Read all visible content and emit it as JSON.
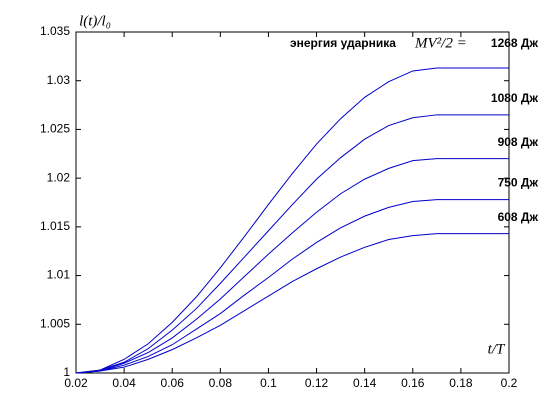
{
  "chart_data": {
    "type": "line",
    "ylabel": "l(t)/l₀",
    "xlabel": "t/T",
    "annotation": "энергия ударника",
    "formula": "MV²/2 =",
    "x": [
      0.02,
      0.03,
      0.04,
      0.05,
      0.06,
      0.07,
      0.08,
      0.09,
      0.1,
      0.11,
      0.12,
      0.13,
      0.14,
      0.15,
      0.16,
      0.17,
      0.18,
      0.19,
      0.2
    ],
    "series": [
      {
        "name": "1268  Дж",
        "color": "#0000cc",
        "values": [
          1,
          1.0003,
          1.0014,
          1.003,
          1.0052,
          1.0078,
          1.0108,
          1.014,
          1.0173,
          1.0205,
          1.0235,
          1.0261,
          1.0283,
          1.0299,
          1.031,
          1.0313,
          1.0313,
          1.0313,
          1.0313
        ]
      },
      {
        "name": "1080 Дж",
        "color": "#0000cc",
        "values": [
          1,
          1.0003,
          1.0011,
          1.0025,
          1.0044,
          1.0066,
          1.0092,
          1.0119,
          1.0146,
          1.0173,
          1.0199,
          1.0221,
          1.024,
          1.0254,
          1.0262,
          1.0265,
          1.0265,
          1.0265,
          1.0265
        ]
      },
      {
        "name": "908  Дж",
        "color": "#0000cc",
        "values": [
          1,
          1.0002,
          1.001,
          1.0021,
          1.0036,
          1.0055,
          1.0076,
          1.0099,
          1.0122,
          1.0144,
          1.0165,
          1.0184,
          1.0199,
          1.021,
          1.0218,
          1.022,
          1.022,
          1.022,
          1.022
        ]
      },
      {
        "name": "750  Дж",
        "color": "#0000cc",
        "values": [
          1,
          1.0002,
          1.0008,
          1.0017,
          1.0029,
          1.0045,
          1.0061,
          1.008,
          1.0098,
          1.0117,
          1.0134,
          1.0149,
          1.0161,
          1.017,
          1.0176,
          1.0178,
          1.0178,
          1.0178,
          1.0178
        ]
      },
      {
        "name": "608  Дж",
        "color": "#0000cc",
        "values": [
          1,
          1.0002,
          1.0006,
          1.0014,
          1.0024,
          1.0036,
          1.0049,
          1.0064,
          1.0079,
          1.0094,
          1.0107,
          1.0119,
          1.0129,
          1.0137,
          1.0141,
          1.0143,
          1.0143,
          1.0143,
          1.0143
        ]
      }
    ],
    "xlim": [
      0.02,
      0.2
    ],
    "ylim": [
      1,
      1.035
    ],
    "xticks": [
      0.02,
      0.04,
      0.06,
      0.08,
      0.1,
      0.12,
      0.14,
      0.16,
      0.18,
      0.2
    ],
    "yticks": [
      1,
      1.005,
      1.01,
      1.015,
      1.02,
      1.025,
      1.03,
      1.035
    ],
    "grid": false
  }
}
